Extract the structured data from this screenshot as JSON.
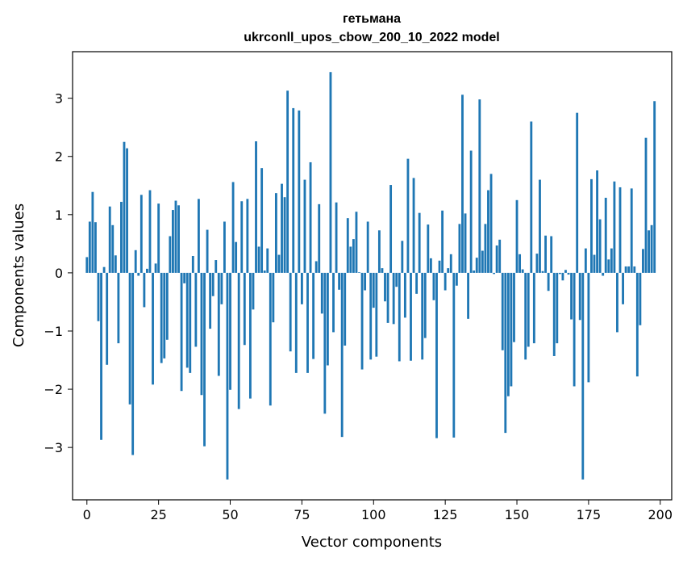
{
  "chart_data": {
    "type": "bar",
    "title": "гетьмана",
    "subtitle": "ukrconll_upos_cbow_200_10_2022 model",
    "xlabel": "Vector components",
    "ylabel": "Components values",
    "xlim": [
      -5,
      204
    ],
    "ylim": [
      -3.9,
      3.8
    ],
    "xticks": [
      0,
      25,
      50,
      75,
      100,
      125,
      150,
      175,
      200
    ],
    "yticks": [
      -3,
      -2,
      -1,
      0,
      1,
      2,
      3
    ],
    "xtick_labels": [
      "0",
      "25",
      "50",
      "75",
      "100",
      "125",
      "150",
      "175",
      "200"
    ],
    "ytick_labels": [
      "−3",
      "−2",
      "−1",
      "0",
      "1",
      "2",
      "3"
    ],
    "grid": false,
    "bar_color": "#1f77b4",
    "values": [
      0.27,
      0.88,
      1.39,
      0.87,
      -0.83,
      -2.87,
      0.1,
      -1.58,
      1.14,
      0.82,
      0.3,
      -1.21,
      1.22,
      2.25,
      2.14,
      -2.26,
      -3.13,
      0.39,
      -0.05,
      1.34,
      -0.59,
      0.07,
      1.42,
      -1.92,
      0.16,
      1.19,
      -1.55,
      -1.47,
      -1.15,
      0.63,
      1.08,
      1.24,
      1.16,
      -2.03,
      -0.18,
      -1.63,
      -1.72,
      0.29,
      -1.27,
      1.27,
      -2.1,
      -2.98,
      0.74,
      -0.96,
      -0.4,
      0.22,
      -1.77,
      -0.54,
      0.88,
      -3.55,
      -2.01,
      1.56,
      0.53,
      -2.34,
      1.23,
      -1.24,
      1.27,
      -2.16,
      -0.63,
      2.26,
      0.45,
      1.8,
      0.04,
      0.42,
      -2.28,
      -0.85,
      1.37,
      0.31,
      1.53,
      1.3,
      3.13,
      -1.35,
      2.83,
      -1.72,
      2.79,
      -0.54,
      1.6,
      -1.72,
      1.9,
      -1.48,
      0.2,
      1.18,
      -0.7,
      -2.42,
      -1.59,
      3.45,
      -1.02,
      1.21,
      -0.29,
      -2.82,
      -1.25,
      0.94,
      0.45,
      0.58,
      1.05,
      0.01,
      -1.66,
      -0.3,
      0.88,
      -1.49,
      -0.6,
      -1.44,
      0.73,
      0.08,
      -0.49,
      -0.86,
      1.51,
      -0.88,
      -0.24,
      -1.52,
      0.55,
      -0.77,
      1.96,
      -1.51,
      1.63,
      -0.36,
      1.03,
      -1.49,
      -1.12,
      0.83,
      0.25,
      -0.47,
      -2.84,
      0.21,
      1.07,
      -0.3,
      0.08,
      0.32,
      -2.83,
      -0.22,
      0.84,
      3.06,
      1.02,
      -0.79,
      2.1,
      0.04,
      0.26,
      2.98,
      0.38,
      0.84,
      1.42,
      1.7,
      -0.02,
      0.47,
      0.57,
      -1.33,
      -2.75,
      -2.12,
      -1.95,
      -1.19,
      1.25,
      0.32,
      0.06,
      -1.49,
      -1.27,
      2.6,
      -1.21,
      0.33,
      1.6,
      0.03,
      0.64,
      -0.31,
      0.63,
      -1.43,
      -1.21,
      -0.02,
      -0.13,
      0.05,
      -0.03,
      -0.8,
      -1.95,
      2.75,
      -0.81,
      -3.55,
      0.42,
      -1.88,
      1.61,
      0.31,
      1.76,
      0.92,
      -0.05,
      1.29,
      0.23,
      0.42,
      1.57,
      -1.02,
      1.47,
      -0.54,
      0.11,
      0.11,
      1.45,
      0.11,
      -1.78,
      -0.9,
      0.41,
      2.32,
      0.73,
      0.82,
      2.95
    ]
  }
}
